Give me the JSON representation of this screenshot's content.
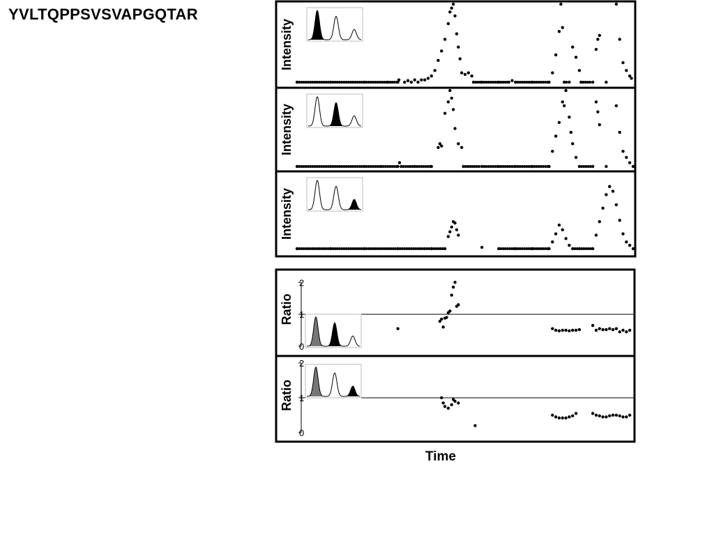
{
  "title": "YVLTQPPSVSVAPGQTAR",
  "xlabel": "Time",
  "chart_data": [
    {
      "type": "scatter",
      "ylabel": "Intensity",
      "inset_highlight": 1,
      "ylim": [
        0,
        100
      ],
      "xlim": [
        0,
        100
      ],
      "series": [
        {
          "points": [
            [
              0,
              0
            ],
            [
              10,
              0
            ],
            [
              20,
              0
            ],
            [
              27,
              0
            ],
            [
              30,
              0
            ],
            [
              30.3,
              3
            ],
            [
              32,
              0
            ],
            [
              33,
              2
            ],
            [
              34,
              0
            ],
            [
              35,
              3
            ],
            [
              36,
              0
            ],
            [
              37,
              3
            ],
            [
              38,
              3
            ],
            [
              39,
              5
            ],
            [
              40,
              8
            ],
            [
              41,
              15
            ],
            [
              42,
              28
            ],
            [
              43,
              40
            ],
            [
              44,
              55
            ],
            [
              45,
              75
            ],
            [
              45.5,
              90
            ],
            [
              46,
              95
            ],
            [
              46.5,
              100
            ],
            [
              47,
              85
            ],
            [
              47.5,
              62
            ],
            [
              48,
              45
            ],
            [
              48.5,
              30
            ],
            [
              49,
              12
            ],
            [
              50,
              10
            ],
            [
              51,
              12
            ],
            [
              52,
              8
            ],
            [
              52.5,
              0
            ],
            [
              55,
              0
            ],
            [
              60,
              0
            ],
            [
              63,
              0
            ],
            [
              64,
              2
            ],
            [
              65,
              0
            ],
            [
              70,
              0
            ],
            [
              75,
              0
            ],
            [
              76,
              12
            ],
            [
              77,
              35
            ],
            [
              78,
              65
            ],
            [
              78.5,
              100
            ],
            [
              79,
              70
            ],
            [
              79.5,
              0
            ],
            [
              81,
              0
            ],
            [
              82,
              45
            ],
            [
              83,
              32
            ],
            [
              84,
              15
            ],
            [
              84.5,
              0
            ],
            [
              88,
              0
            ],
            [
              89,
              42
            ],
            [
              89.5,
              55
            ],
            [
              90,
              60
            ],
            [
              92,
              0
            ],
            [
              95,
              100
            ],
            [
              96,
              55
            ],
            [
              97,
              25
            ],
            [
              98,
              15
            ],
            [
              99,
              8
            ],
            [
              99.5,
              5
            ]
          ]
        }
      ]
    },
    {
      "type": "scatter",
      "ylabel": "Intensity",
      "inset_highlight": 2,
      "ylim": [
        0,
        100
      ],
      "xlim": [
        0,
        100
      ],
      "series": [
        {
          "points": [
            [
              0,
              0
            ],
            [
              10,
              0
            ],
            [
              20,
              0
            ],
            [
              25,
              0
            ],
            [
              30,
              0
            ],
            [
              30.5,
              5
            ],
            [
              31,
              0
            ],
            [
              35,
              0
            ],
            [
              40,
              0
            ],
            [
              42,
              25
            ],
            [
              42.5,
              30
            ],
            [
              43,
              27
            ],
            [
              44,
              70
            ],
            [
              45,
              85
            ],
            [
              45.5,
              100
            ],
            [
              46,
              90
            ],
            [
              46.5,
              75
            ],
            [
              47,
              50
            ],
            [
              48,
              30
            ],
            [
              49,
              25
            ],
            [
              49.5,
              0
            ],
            [
              55,
              0
            ],
            [
              60,
              0
            ],
            [
              65,
              0
            ],
            [
              70,
              0
            ],
            [
              75,
              0
            ],
            [
              76,
              20
            ],
            [
              77,
              40
            ],
            [
              78,
              58
            ],
            [
              79,
              85
            ],
            [
              79.5,
              80
            ],
            [
              80,
              100
            ],
            [
              81,
              65
            ],
            [
              81.5,
              45
            ],
            [
              82,
              30
            ],
            [
              83,
              12
            ],
            [
              84,
              0
            ],
            [
              88,
              0
            ],
            [
              89,
              85
            ],
            [
              89.5,
              72
            ],
            [
              90,
              55
            ],
            [
              92,
              0
            ],
            [
              95,
              80
            ],
            [
              96,
              45
            ],
            [
              97,
              20
            ],
            [
              98,
              12
            ],
            [
              99,
              5
            ],
            [
              100,
              0
            ]
          ]
        }
      ]
    },
    {
      "type": "scatter",
      "ylabel": "Intensity",
      "inset_highlight": 3,
      "ylim": [
        0,
        100
      ],
      "xlim": [
        0,
        100
      ],
      "series": [
        {
          "points": [
            [
              0,
              0
            ],
            [
              10,
              0
            ],
            [
              20,
              0
            ],
            [
              30,
              0
            ],
            [
              40,
              0
            ],
            [
              44,
              0
            ],
            [
              45,
              18
            ],
            [
              45.5,
              25
            ],
            [
              46,
              32
            ],
            [
              46.5,
              40
            ],
            [
              47,
              38
            ],
            [
              47.5,
              28
            ],
            [
              48,
              20
            ],
            [
              55,
              2
            ],
            [
              60,
              0
            ],
            [
              65,
              0
            ],
            [
              70,
              0
            ],
            [
              75,
              0
            ],
            [
              76,
              10
            ],
            [
              77,
              22
            ],
            [
              78,
              35
            ],
            [
              79,
              28
            ],
            [
              80,
              15
            ],
            [
              81,
              5
            ],
            [
              82,
              0
            ],
            [
              84,
              0
            ],
            [
              88,
              0
            ],
            [
              89,
              20
            ],
            [
              90,
              40
            ],
            [
              91,
              60
            ],
            [
              92,
              80
            ],
            [
              93,
              92
            ],
            [
              94,
              85
            ],
            [
              95,
              65
            ],
            [
              96,
              42
            ],
            [
              97,
              22
            ],
            [
              98,
              10
            ],
            [
              99,
              5
            ],
            [
              100,
              0
            ]
          ]
        }
      ]
    },
    {
      "type": "scatter",
      "ylabel": "Ratio",
      "inset_highlight": [
        1,
        2
      ],
      "ylim": [
        0,
        2.4
      ],
      "yticks": [
        0,
        1,
        2
      ],
      "hline": 1,
      "xlim": [
        0,
        100
      ],
      "series": [
        {
          "points": [
            [
              30,
              0.55
            ],
            [
              42.5,
              0.78
            ],
            [
              43,
              0.85
            ],
            [
              43.5,
              0.6
            ],
            [
              44,
              0.88
            ],
            [
              44.5,
              0.9
            ],
            [
              45,
              1.05
            ],
            [
              45.5,
              1.1
            ],
            [
              46,
              1.6
            ],
            [
              46.5,
              1.85
            ],
            [
              47,
              2.0
            ],
            [
              47.5,
              1.25
            ],
            [
              48,
              1.3
            ],
            [
              76,
              0.55
            ],
            [
              77,
              0.5
            ],
            [
              78,
              0.48
            ],
            [
              79,
              0.5
            ],
            [
              80,
              0.5
            ],
            [
              81,
              0.48
            ],
            [
              82,
              0.5
            ],
            [
              83,
              0.5
            ],
            [
              84,
              0.52
            ],
            [
              88,
              0.65
            ],
            [
              89,
              0.5
            ],
            [
              90,
              0.55
            ],
            [
              91,
              0.52
            ],
            [
              92,
              0.52
            ],
            [
              93,
              0.55
            ],
            [
              94,
              0.52
            ],
            [
              95,
              0.55
            ],
            [
              96,
              0.45
            ],
            [
              97,
              0.5
            ],
            [
              98,
              0.45
            ],
            [
              99,
              0.5
            ]
          ]
        }
      ]
    },
    {
      "type": "scatter",
      "ylabel": "Ratio",
      "inset_highlight": [
        1,
        3
      ],
      "ylim": [
        0,
        2.2
      ],
      "yticks": [
        0,
        1,
        2
      ],
      "hline": 1,
      "xlim": [
        0,
        100
      ],
      "series": [
        {
          "points": [
            [
              43,
              1.0
            ],
            [
              43.5,
              0.85
            ],
            [
              44,
              0.75
            ],
            [
              45,
              0.7
            ],
            [
              46,
              0.8
            ],
            [
              46.5,
              0.95
            ],
            [
              47,
              0.9
            ],
            [
              48,
              0.85
            ],
            [
              53,
              0.2
            ],
            [
              76,
              0.5
            ],
            [
              77,
              0.45
            ],
            [
              78,
              0.42
            ],
            [
              79,
              0.42
            ],
            [
              80,
              0.42
            ],
            [
              81,
              0.45
            ],
            [
              82,
              0.48
            ],
            [
              83,
              0.55
            ],
            [
              88,
              0.55
            ],
            [
              89,
              0.5
            ],
            [
              90,
              0.48
            ],
            [
              91,
              0.45
            ],
            [
              92,
              0.45
            ],
            [
              93,
              0.48
            ],
            [
              94,
              0.5
            ],
            [
              95,
              0.5
            ],
            [
              96,
              0.48
            ],
            [
              97,
              0.45
            ],
            [
              98,
              0.45
            ],
            [
              99,
              0.5
            ]
          ]
        }
      ]
    }
  ]
}
